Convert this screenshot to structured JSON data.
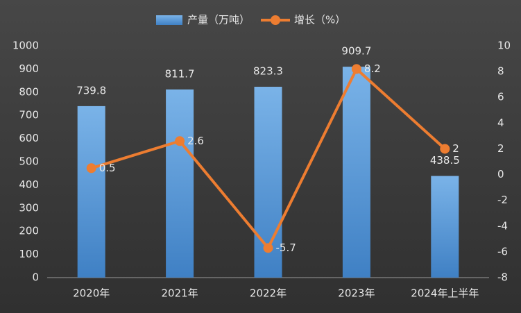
{
  "chart_data": {
    "type": "bar",
    "categories": [
      "2020年",
      "2021年",
      "2022年",
      "2023年",
      "2024年上半年"
    ],
    "series": [
      {
        "name": "产量（万吨）",
        "type": "bar",
        "color": "#5b9bd5",
        "values": [
          739.8,
          811.7,
          823.3,
          909.7,
          438.5
        ]
      },
      {
        "name": "增长（%）",
        "type": "line",
        "axis": "y2",
        "color": "#ed7d31",
        "values": [
          0.5,
          2.6,
          -5.7,
          8.2,
          2
        ]
      }
    ],
    "ylim": [
      0,
      1000
    ],
    "yticks": [
      0,
      100,
      200,
      300,
      400,
      500,
      600,
      700,
      800,
      900,
      1000
    ],
    "y2lim": [
      -8,
      10
    ],
    "y2ticks": [
      -8,
      -6,
      -4,
      -2,
      0,
      2,
      4,
      6,
      8,
      10
    ],
    "legend": "top"
  }
}
